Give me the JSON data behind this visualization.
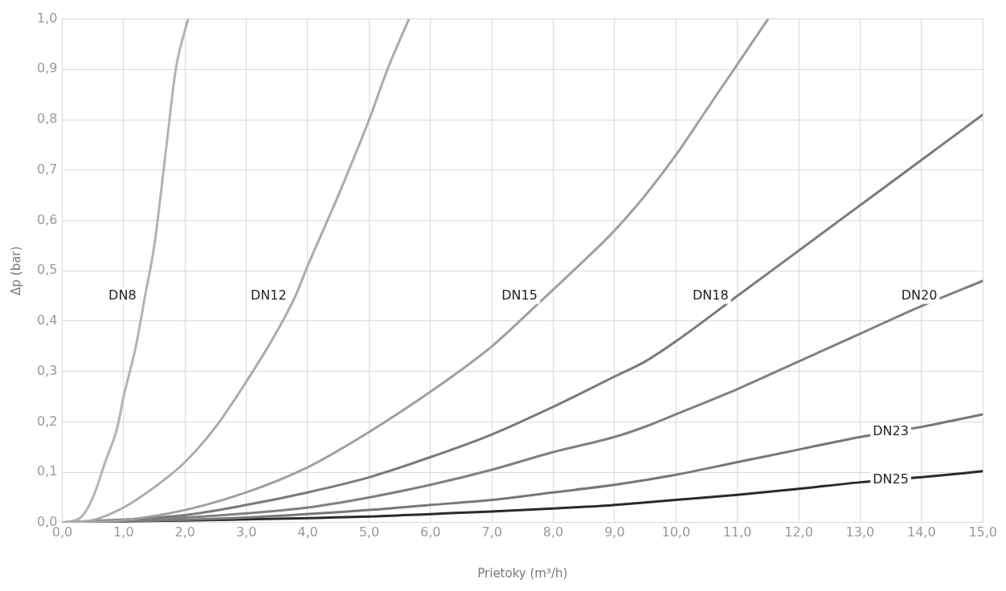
{
  "chart_data": {
    "type": "line",
    "xlabel": "Prietoky (m³/h)",
    "ylabel": "Δp (bar)",
    "xlim": [
      0,
      15
    ],
    "ylim": [
      0,
      1
    ],
    "xticks": [
      {
        "value": 0,
        "label": "0,0"
      },
      {
        "value": 1,
        "label": "1,0"
      },
      {
        "value": 2,
        "label": "2,0"
      },
      {
        "value": 3,
        "label": "3,0"
      },
      {
        "value": 4,
        "label": "4,0"
      },
      {
        "value": 5,
        "label": "5,0"
      },
      {
        "value": 6,
        "label": "6,0"
      },
      {
        "value": 7,
        "label": "7,0"
      },
      {
        "value": 8,
        "label": "8,0"
      },
      {
        "value": 9,
        "label": "9,0"
      },
      {
        "value": 10,
        "label": "10,0"
      },
      {
        "value": 11,
        "label": "11,0"
      },
      {
        "value": 12,
        "label": "12,0"
      },
      {
        "value": 13,
        "label": "13,0"
      },
      {
        "value": 14,
        "label": "14,0"
      },
      {
        "value": 15,
        "label": "15,0"
      }
    ],
    "yticks": [
      {
        "value": 0,
        "label": "0,0"
      },
      {
        "value": 0.1,
        "label": "0,1"
      },
      {
        "value": 0.2,
        "label": "0,2"
      },
      {
        "value": 0.3,
        "label": "0,3"
      },
      {
        "value": 0.4,
        "label": "0,4"
      },
      {
        "value": 0.5,
        "label": "0,5"
      },
      {
        "value": 0.6,
        "label": "0,6"
      },
      {
        "value": 0.7,
        "label": "0,7"
      },
      {
        "value": 0.8,
        "label": "0,8"
      },
      {
        "value": 0.9,
        "label": "0,9"
      },
      {
        "value": 1,
        "label": "1,0"
      }
    ],
    "grid": true,
    "legend": false,
    "marker": "none",
    "line_style": "solid",
    "series": [
      {
        "name": "DN8",
        "color": "#b3b3b3",
        "x": [
          0,
          0.3,
          0.5,
          0.7,
          0.9,
          1.0,
          1.2,
          1.35,
          1.5,
          1.7,
          1.85,
          2.05
        ],
        "values": [
          0,
          0.01,
          0.05,
          0.12,
          0.19,
          0.25,
          0.35,
          0.45,
          0.55,
          0.75,
          0.9,
          1.0
        ]
      },
      {
        "name": "DN12",
        "color": "#ababab",
        "x": [
          0,
          0.5,
          1,
          1.5,
          2,
          2.5,
          3,
          3.5,
          3.8,
          4,
          4.5,
          5,
          5.3,
          5.65
        ],
        "values": [
          0,
          0.005,
          0.03,
          0.07,
          0.12,
          0.19,
          0.28,
          0.38,
          0.45,
          0.51,
          0.65,
          0.8,
          0.9,
          1.0
        ]
      },
      {
        "name": "DN15",
        "color": "#a0a0a0",
        "x": [
          0,
          1,
          2,
          3,
          4,
          5,
          6,
          7,
          7.8,
          8.5,
          9,
          9.5,
          10,
          10.5,
          11,
          11.5
        ],
        "values": [
          0,
          0.005,
          0.025,
          0.06,
          0.11,
          0.18,
          0.26,
          0.35,
          0.44,
          0.52,
          0.58,
          0.65,
          0.73,
          0.82,
          0.91,
          1.0
        ]
      },
      {
        "name": "DN18",
        "color": "#7a7a7a",
        "x": [
          0,
          2,
          3,
          4,
          5,
          6,
          7,
          8,
          9,
          9.5,
          10,
          11,
          12,
          13,
          14,
          15
        ],
        "values": [
          0,
          0.015,
          0.035,
          0.06,
          0.09,
          0.13,
          0.175,
          0.23,
          0.29,
          0.32,
          0.36,
          0.45,
          0.54,
          0.63,
          0.72,
          0.81
        ]
      },
      {
        "name": "DN20",
        "color": "#808080",
        "x": [
          0,
          2,
          4,
          5,
          6,
          7,
          8,
          9,
          9.6,
          10,
          11,
          12,
          13,
          14,
          15
        ],
        "values": [
          0,
          0.01,
          0.03,
          0.05,
          0.075,
          0.105,
          0.14,
          0.17,
          0.195,
          0.215,
          0.265,
          0.32,
          0.375,
          0.43,
          0.48
        ]
      },
      {
        "name": "DN23",
        "color": "#777777",
        "x": [
          0,
          3,
          5,
          6,
          7,
          8,
          9,
          10,
          11,
          12,
          13,
          14,
          15
        ],
        "values": [
          0,
          0.01,
          0.025,
          0.035,
          0.045,
          0.06,
          0.075,
          0.095,
          0.12,
          0.145,
          0.17,
          0.19,
          0.215
        ]
      },
      {
        "name": "DN25",
        "color": "#2a2a2a",
        "x": [
          0,
          5,
          6,
          7,
          8,
          9,
          9.5,
          10,
          11,
          12,
          13,
          14,
          15
        ],
        "values": [
          0,
          0.012,
          0.017,
          0.022,
          0.028,
          0.035,
          0.04,
          0.045,
          0.055,
          0.067,
          0.08,
          0.09,
          0.102
        ]
      }
    ]
  }
}
